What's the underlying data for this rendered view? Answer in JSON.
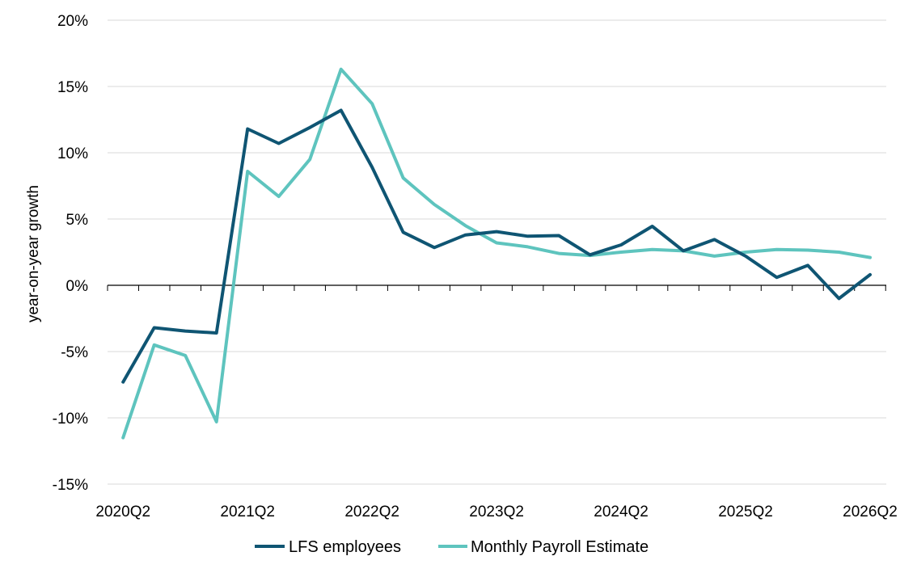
{
  "chart_data": {
    "type": "line",
    "title": "",
    "xlabel": "",
    "ylabel": "year-on-year growth",
    "ylim": [
      -15,
      20
    ],
    "y_ticks": [
      "20%",
      "15%",
      "10%",
      "5%",
      "0%",
      "-5%",
      "-10%",
      "-15%"
    ],
    "y_tick_values": [
      20,
      15,
      10,
      5,
      0,
      -5,
      -10,
      -15
    ],
    "grid": true,
    "legend_position": "bottom",
    "x": [
      "2020Q2",
      "2020Q3",
      "2020Q4",
      "2021Q1",
      "2021Q2",
      "2021Q3",
      "2021Q4",
      "2022Q1",
      "2022Q2",
      "2022Q3",
      "2022Q4",
      "2023Q1",
      "2023Q2",
      "2023Q3",
      "2023Q4",
      "2024Q1",
      "2024Q2",
      "2024Q3",
      "2024Q4",
      "2025Q1",
      "2025Q2",
      "2025Q3",
      "2025Q4",
      "2026Q1",
      "2026Q2"
    ],
    "x_tick_labels": [
      "2020Q2",
      "2021Q2",
      "2022Q2",
      "2023Q2",
      "2024Q2",
      "2025Q2",
      "2026Q2"
    ],
    "x_tick_indices": [
      0,
      4,
      8,
      12,
      16,
      20,
      24
    ],
    "series": [
      {
        "name": "LFS employees",
        "color": "#0f5573",
        "values": [
          -7.3,
          -3.2,
          -3.45,
          -3.6,
          11.8,
          10.7,
          11.9,
          13.2,
          8.9,
          4.0,
          2.85,
          3.8,
          4.05,
          3.7,
          3.75,
          2.3,
          3.05,
          4.45,
          2.6,
          3.45,
          2.2,
          0.6,
          1.5,
          -1.0,
          0.8
        ]
      },
      {
        "name": "Monthly Payroll Estimate",
        "color": "#5ec4be",
        "values": [
          -11.5,
          -4.5,
          -5.3,
          -10.3,
          8.6,
          6.7,
          9.5,
          16.3,
          13.7,
          8.1,
          6.1,
          4.5,
          3.2,
          2.9,
          2.4,
          2.25,
          2.5,
          2.7,
          2.6,
          2.2,
          2.5,
          2.7,
          2.65,
          2.5,
          2.1
        ]
      }
    ]
  }
}
